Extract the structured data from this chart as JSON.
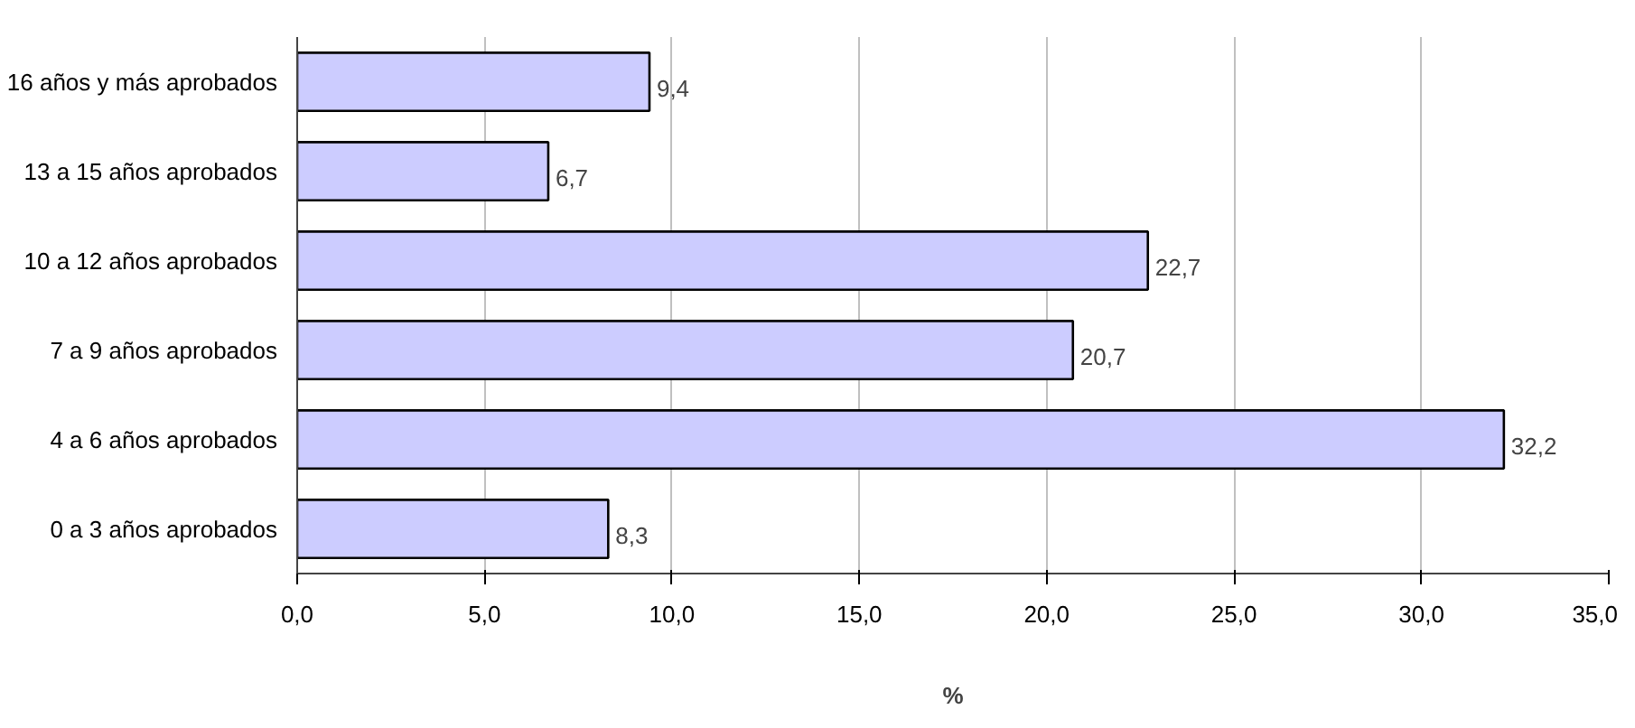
{
  "chart_data": {
    "type": "bar",
    "orientation": "horizontal",
    "xlabel": "%",
    "categories": [
      "16 años y más aprobados",
      "13 a 15 años aprobados",
      "10 a 12 años aprobados",
      "7 a 9 años aprobados",
      "4 a 6 años aprobados",
      "0 a 3 años aprobados"
    ],
    "values": [
      9.4,
      6.7,
      22.7,
      20.7,
      32.2,
      8.3
    ],
    "value_labels": [
      "9,4",
      "6,7",
      "22,7",
      "20,7",
      "32,2",
      "8,3"
    ],
    "color": "#ccccff",
    "xlim": [
      0,
      35
    ],
    "xticks": [
      {
        "value": 0,
        "label": "0,0"
      },
      {
        "value": 5,
        "label": "5,0"
      },
      {
        "value": 10,
        "label": "10,0"
      },
      {
        "value": 15,
        "label": "15,0"
      },
      {
        "value": 20,
        "label": "20,0"
      },
      {
        "value": 25,
        "label": "25,0"
      },
      {
        "value": 30,
        "label": "30,0"
      },
      {
        "value": 35,
        "label": "35,0"
      }
    ],
    "grid": "x"
  }
}
